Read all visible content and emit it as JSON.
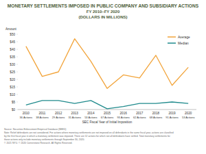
{
  "chart_data": {
    "type": "line",
    "title": "MONETARY SETTLEMENTS IMPOSED IN PUBLIC COMPANY AND SUBSIDIARY ACTIONS",
    "subtitle": [
      "FY 2010–FY 2020",
      "(DOLLARS IN MILLIONS)"
    ],
    "y_label": "Amount",
    "x_label": "SEC Fiscal Year of Initial Imposition",
    "categories": [
      "2010",
      "2011",
      "2012",
      "2013",
      "2014",
      "2015",
      "2016",
      "2017",
      "2018",
      "2019",
      "2020"
    ],
    "annotations": [
      "36 Actions",
      "38 Actions",
      "29 Actions",
      "31 Actions",
      "53 Actions",
      "67 Actions",
      "93 Actions",
      "62 Actions",
      "68 Actions",
      "91 Actions",
      "53 Actions"
    ],
    "series": [
      {
        "name": "Average",
        "color": "#f2a43a",
        "values": [
          42,
          22,
          25,
          47,
          32,
          14,
          23,
          21,
          36,
          16,
          28
        ]
      },
      {
        "name": "Median",
        "color": "#1f8a8c",
        "values": [
          3,
          6,
          6,
          4,
          6,
          0.5,
          2,
          4,
          4,
          5,
          4
        ]
      }
    ],
    "ylim": [
      0,
      50
    ],
    "yticks": [
      {
        "value": 0,
        "label": "$0"
      },
      {
        "value": 5,
        "label": "$5"
      },
      {
        "value": 10,
        "label": "$10"
      },
      {
        "value": 15,
        "label": "$15"
      },
      {
        "value": 20,
        "label": "$20"
      },
      {
        "value": 25,
        "label": "$25"
      },
      {
        "value": 30,
        "label": "$30"
      },
      {
        "value": 35,
        "label": "$35"
      },
      {
        "value": 40,
        "label": "$40"
      },
      {
        "value": 45,
        "label": "$45"
      },
      {
        "value": 50,
        "label": "$50"
      }
    ],
    "grid": false,
    "legend": "top-right",
    "footnotes": [
      "Source: Securities Enforcement Empirical Database (SEED)",
      "Note: Relief defendants are not considered. For actions where monetary settlements are not imposed on all defendants in the same fiscal year, actions are classified",
      "by the first fiscal year in which a monetary settlement was imposed. There are 12 actions for which not all defendants have settled. Total monetary settlements for",
      "those actions only include monetary settlements through September 30, 2020.",
      "© 2021 NYU. © 2020 Cornerstone Research. All Rights Reserved."
    ]
  }
}
